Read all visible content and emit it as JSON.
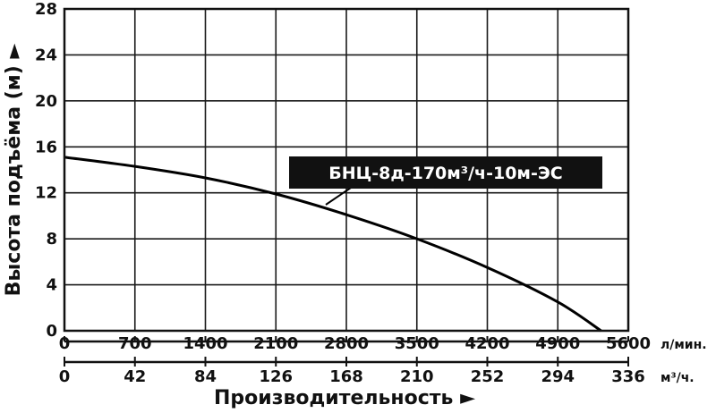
{
  "chart_data": {
    "type": "line",
    "title": "",
    "ylabel": "Высота подъёма (м) ►",
    "xlabel": "Производительность ►",
    "ylim": [
      0,
      28
    ],
    "yticks": [
      "0",
      "4",
      "8",
      "12",
      "16",
      "20",
      "24",
      "28"
    ],
    "xlim": [
      0,
      5600
    ],
    "xticks_lmin": [
      "0",
      "700",
      "1400",
      "2100",
      "2800",
      "3500",
      "4200",
      "4900",
      "5600"
    ],
    "xunit_lmin": "л/мин.",
    "xticks_m3h": [
      "0",
      "42",
      "84",
      "126",
      "168",
      "210",
      "252",
      "294",
      "336"
    ],
    "xunit_m3h": "м³/ч.",
    "grid": true,
    "series": [
      {
        "name": "БНЦ-8д-170м³/ч-10м-ЭС",
        "color": "#000000",
        "x": [
          0,
          700,
          1400,
          2100,
          2800,
          3500,
          4200,
          4900,
          5330
        ],
        "y": [
          15.1,
          14.3,
          13.3,
          11.9,
          10.1,
          8.0,
          5.5,
          2.5,
          0
        ]
      }
    ]
  }
}
